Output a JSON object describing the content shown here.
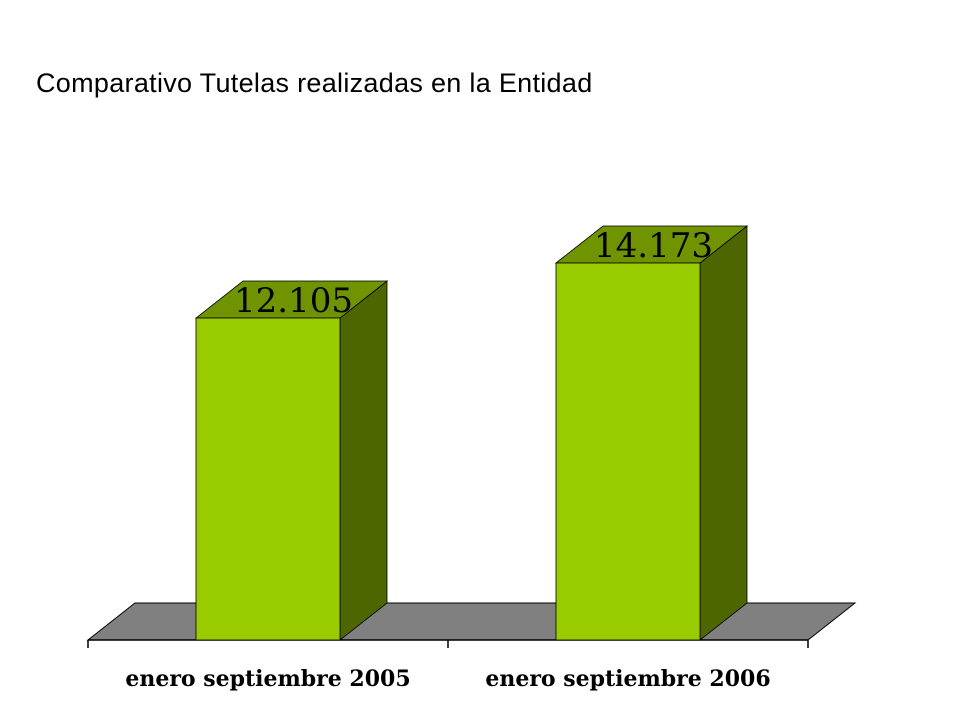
{
  "chart_data": {
    "type": "bar",
    "title": "Comparativo Tutelas realizadas en la Entidad",
    "categories": [
      "enero septiembre 2005",
      "enero septiembre 2006"
    ],
    "values": [
      12105,
      14173
    ],
    "value_labels": [
      "12.105",
      "14.173"
    ],
    "xlabel": "",
    "ylabel": "",
    "ylim": [
      0,
      16000
    ],
    "grid": false,
    "legend": "none",
    "three_d": true
  },
  "colors": {
    "bar_front": "#99cc00",
    "bar_top": "#6f9400",
    "bar_side": "#4d6600",
    "floor": "#808080",
    "axis": "#000000"
  }
}
